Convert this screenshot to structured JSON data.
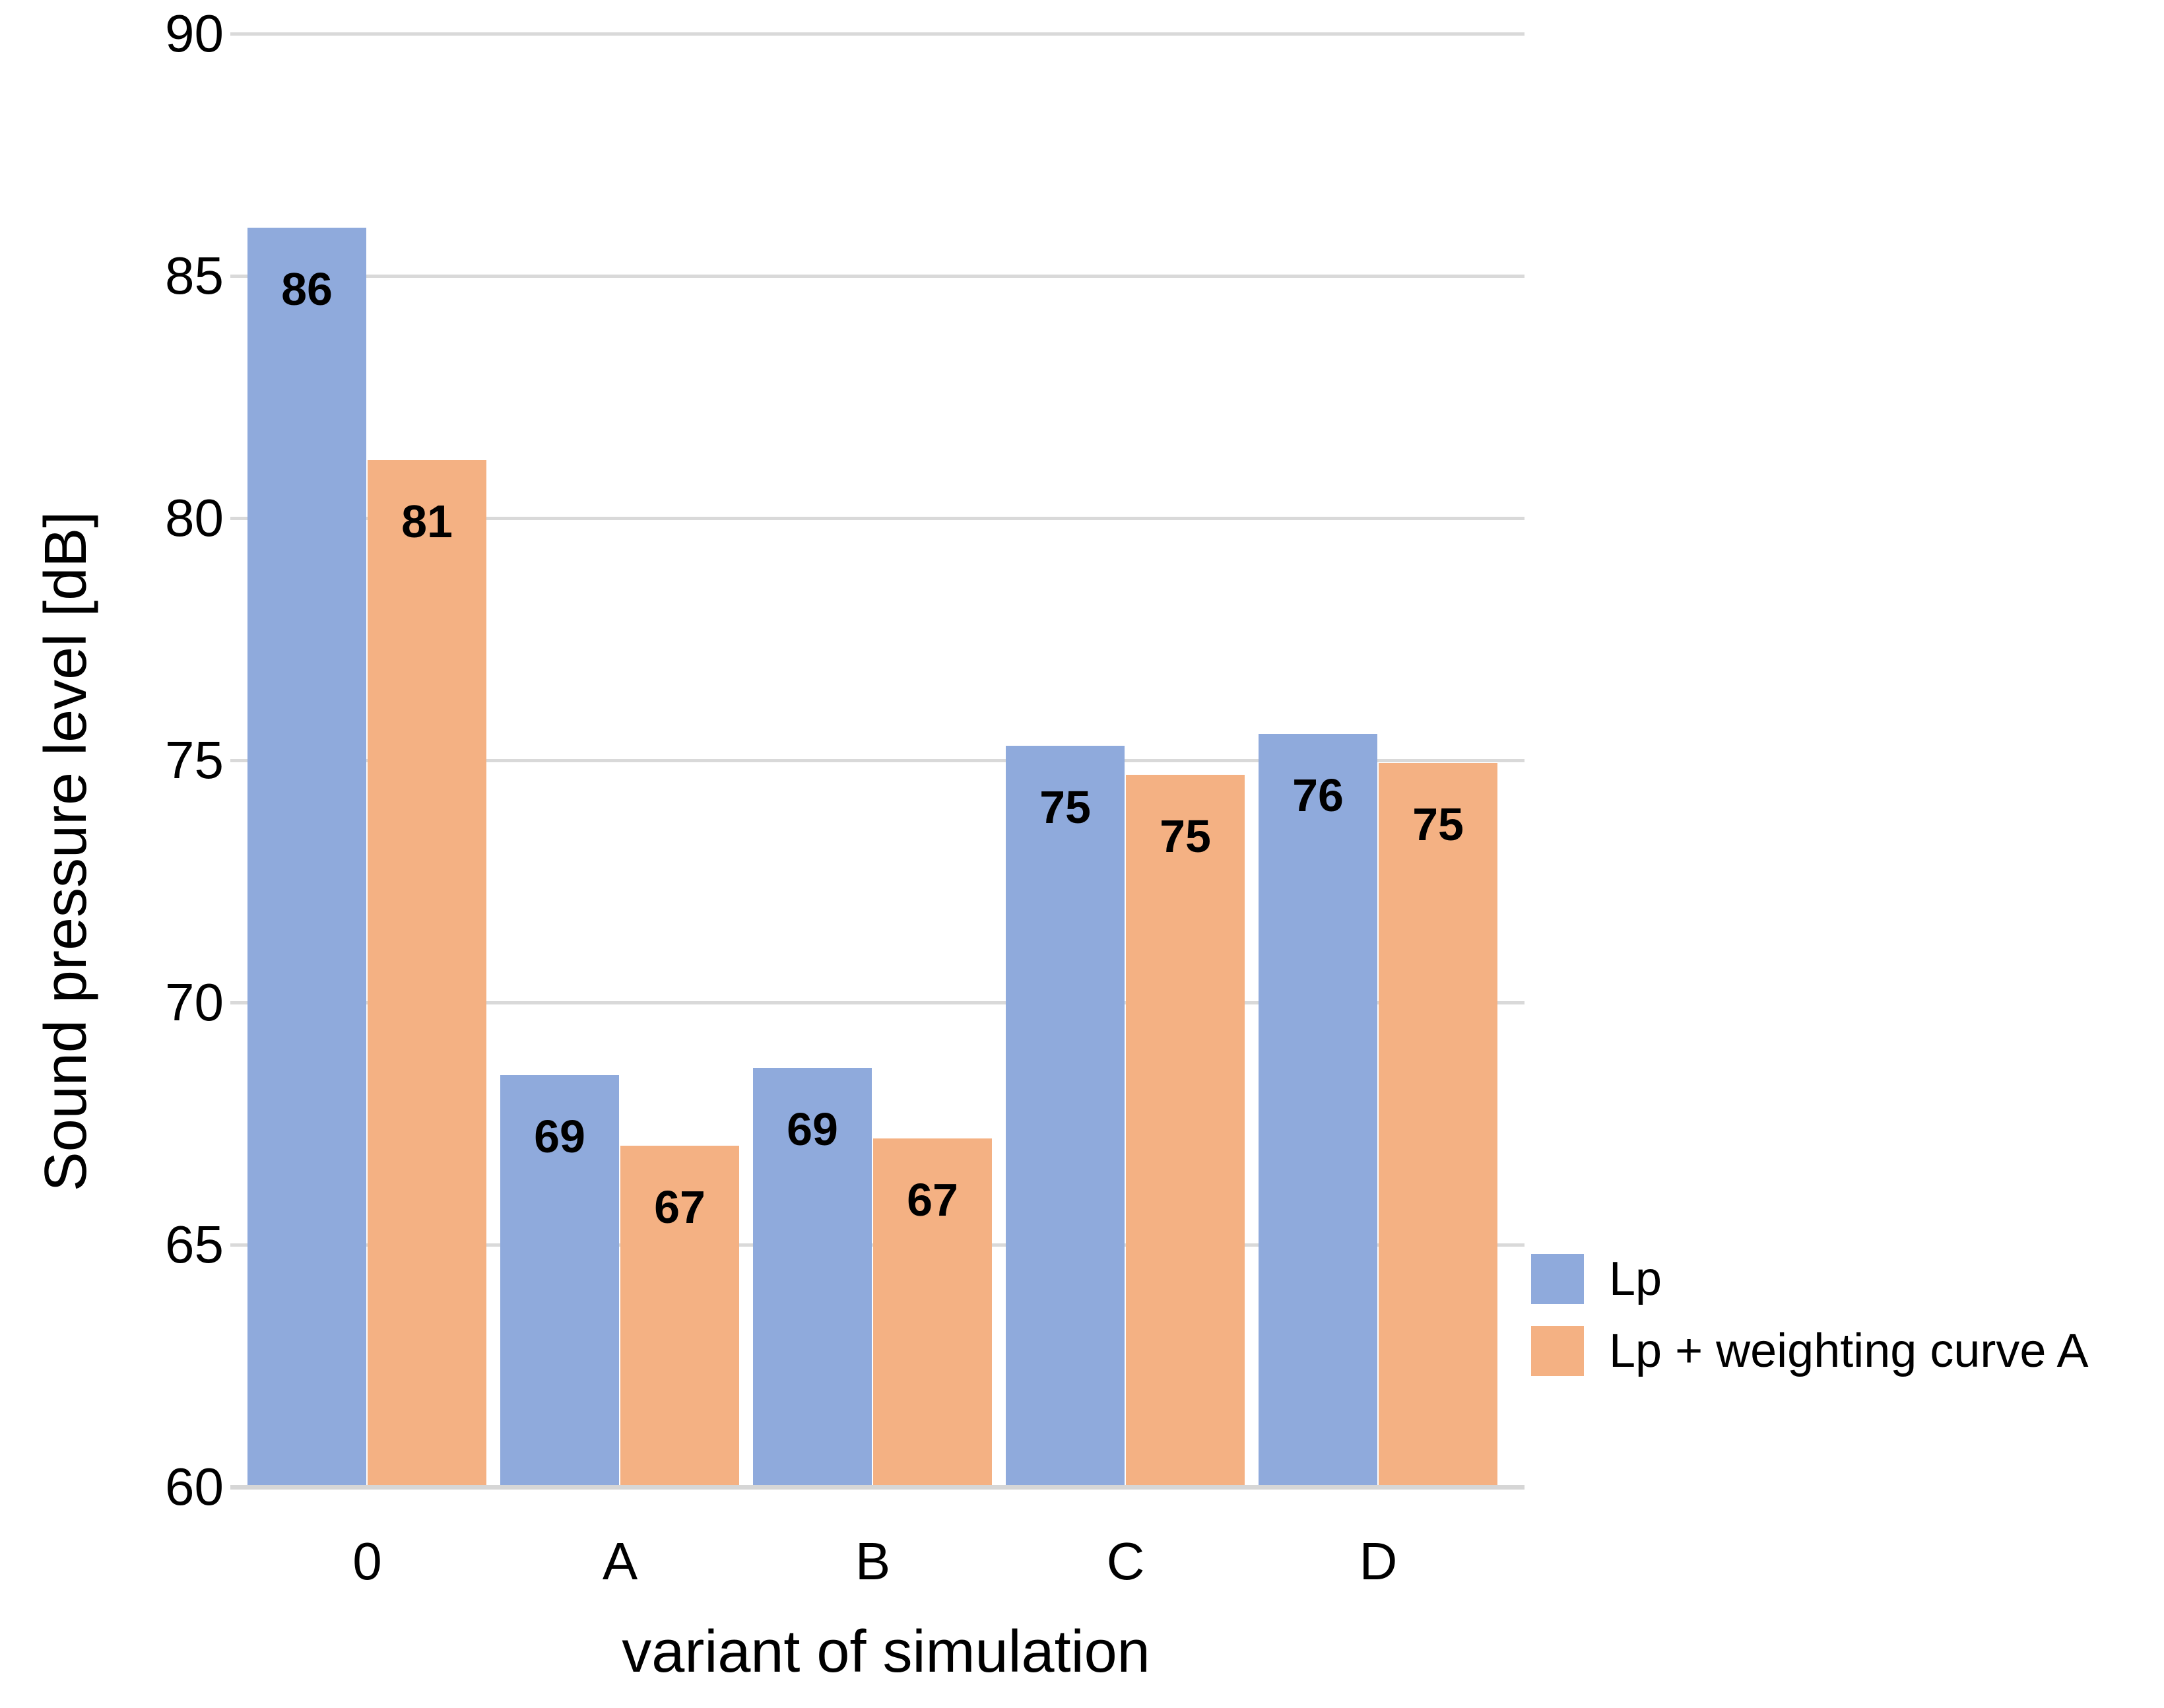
{
  "chart_data": {
    "type": "bar",
    "title": "",
    "xlabel": "variant of simulation",
    "ylabel": "Sound pressure level [dB]",
    "categories": [
      "0",
      "A",
      "B",
      "C",
      "D"
    ],
    "series": [
      {
        "name": "Lp",
        "color": "#8FAADC",
        "values": [
          86.0,
          68.5,
          68.65,
          75.3,
          75.55
        ],
        "data_labels": [
          "86",
          "69",
          "69",
          "75",
          "76"
        ]
      },
      {
        "name": "Lp + weighting curve A",
        "color": "#F4B183",
        "values": [
          81.2,
          67.05,
          67.2,
          74.7,
          74.95
        ],
        "data_labels": [
          "81",
          "67",
          "67",
          "75",
          "75"
        ]
      }
    ],
    "ylim": [
      60,
      90
    ],
    "ytick_step": 5,
    "yticks": [
      "90",
      "85",
      "80",
      "75",
      "70",
      "65",
      "60"
    ],
    "grid": true,
    "gridline_color": "#D9D9D9",
    "axis_line_color": "#D6D6D6",
    "text_color": "#000000",
    "legend_position": "right-middle"
  }
}
